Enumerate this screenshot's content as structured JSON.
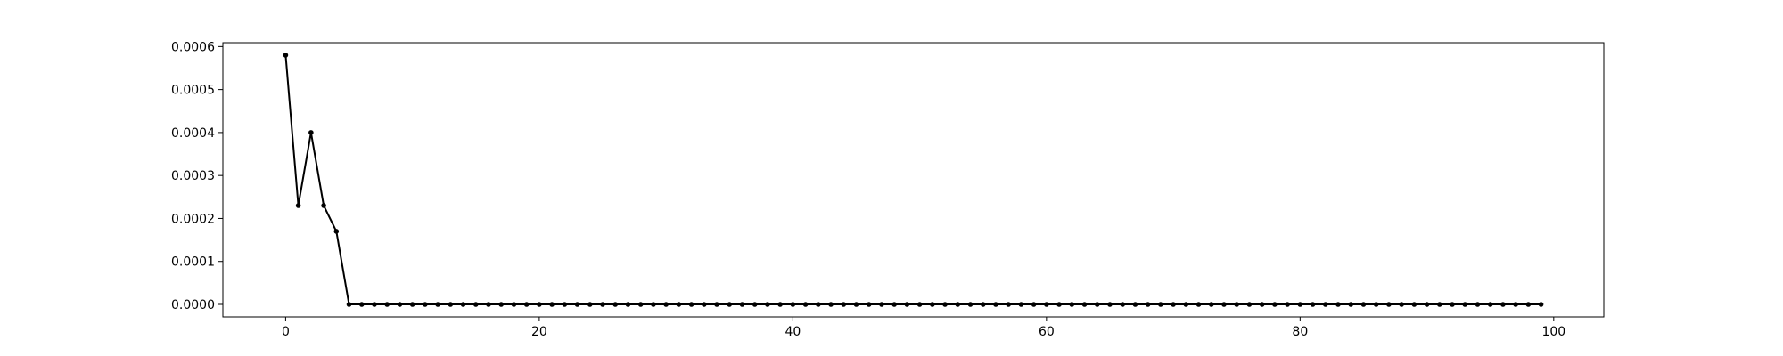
{
  "chart_data": {
    "type": "line",
    "title": "",
    "xlabel": "",
    "ylabel": "",
    "x": [
      0,
      1,
      2,
      3,
      4,
      5,
      6,
      7,
      8,
      9,
      10,
      11,
      12,
      13,
      14,
      15,
      16,
      17,
      18,
      19,
      20,
      21,
      22,
      23,
      24,
      25,
      26,
      27,
      28,
      29,
      30,
      31,
      32,
      33,
      34,
      35,
      36,
      37,
      38,
      39,
      40,
      41,
      42,
      43,
      44,
      45,
      46,
      47,
      48,
      49,
      50,
      51,
      52,
      53,
      54,
      55,
      56,
      57,
      58,
      59,
      60,
      61,
      62,
      63,
      64,
      65,
      66,
      67,
      68,
      69,
      70,
      71,
      72,
      73,
      74,
      75,
      76,
      77,
      78,
      79,
      80,
      81,
      82,
      83,
      84,
      85,
      86,
      87,
      88,
      89,
      90,
      91,
      92,
      93,
      94,
      95,
      96,
      97,
      98,
      99
    ],
    "series": [
      {
        "values": [
          0.00058,
          0.00023,
          0.0004,
          0.00023,
          0.00017,
          0,
          0,
          0,
          0,
          0,
          0,
          0,
          0,
          0,
          0,
          0,
          0,
          0,
          0,
          0,
          0,
          0,
          0,
          0,
          0,
          0,
          0,
          0,
          0,
          0,
          0,
          0,
          0,
          0,
          0,
          0,
          0,
          0,
          0,
          0,
          0,
          0,
          0,
          0,
          0,
          0,
          0,
          0,
          0,
          0,
          0,
          0,
          0,
          0,
          0,
          0,
          0,
          0,
          0,
          0,
          0,
          0,
          0,
          0,
          0,
          0,
          0,
          0,
          0,
          0,
          0,
          0,
          0,
          0,
          0,
          0,
          0,
          0,
          0,
          0,
          0,
          0,
          0,
          0,
          0,
          0,
          0,
          0,
          0,
          0,
          0,
          0,
          0,
          0,
          0,
          0,
          0,
          0,
          0,
          0
        ]
      }
    ],
    "xlim": [
      -4.95,
      103.95
    ],
    "ylim": [
      -2.9e-05,
      0.000609
    ],
    "x_ticks": [
      0,
      20,
      40,
      60,
      80,
      100
    ],
    "x_tick_labels": [
      "0",
      "20",
      "40",
      "60",
      "80",
      "100"
    ],
    "y_ticks": [
      0,
      0.0001,
      0.0002,
      0.0003,
      0.0004,
      0.0005,
      0.0006
    ],
    "y_tick_labels": [
      "0.0000",
      "0.0001",
      "0.0002",
      "0.0003",
      "0.0004",
      "0.0005",
      "0.0006"
    ],
    "grid": false,
    "legend": "none",
    "line_color": "#000000",
    "marker": "dot"
  }
}
